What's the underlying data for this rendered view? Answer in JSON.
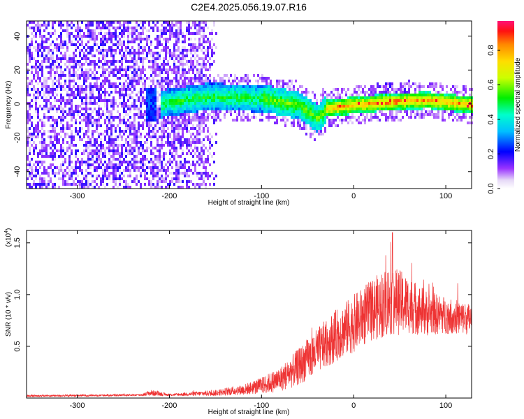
{
  "title": "C2E4.2025.056.19.07.R16",
  "chart_data": [
    {
      "type": "heatmap",
      "xlabel": "Height of straight line (km)",
      "ylabel": "Frequency (Hz)",
      "xlim": [
        -355,
        128
      ],
      "ylim": [
        -50,
        49
      ],
      "x_ticks": [
        -300,
        -200,
        -100,
        0,
        100
      ],
      "y_ticks": [
        -40,
        -20,
        0,
        20,
        40
      ],
      "colorbar": {
        "label": "Normalized spectral amplitude",
        "range": [
          0,
          0.97
        ],
        "ticks": [
          0.0,
          0.2,
          0.4,
          0.6,
          0.8
        ]
      },
      "description_points": {
        "noise_region_x": [
          -355,
          -150
        ],
        "signal_band_center_hz": [
          {
            "x": -220,
            "f": 0
          },
          {
            "x": -160,
            "f": 5
          },
          {
            "x": -100,
            "f": 4
          },
          {
            "x": -60,
            "f": 0
          },
          {
            "x": -40,
            "f": -8
          },
          {
            "x": -30,
            "f": -2
          },
          {
            "x": 0,
            "f": 0
          },
          {
            "x": 40,
            "f": 2
          },
          {
            "x": 80,
            "f": 3
          },
          {
            "x": 128,
            "f": 0
          }
        ],
        "peak_amplitude_region_x": [
          -30,
          128
        ]
      }
    },
    {
      "type": "line",
      "xlabel": "Height of straight line (km)",
      "ylabel": "SNR (10 * v/v)",
      "scale_label": "(x10",
      "scale_exponent": "4",
      "scale_close": ")",
      "xlim": [
        -355,
        128
      ],
      "ylim": [
        0,
        1.62
      ],
      "x_ticks": [
        -300,
        -200,
        -100,
        0,
        100
      ],
      "y_ticks": [
        0.5,
        1.0,
        1.5
      ],
      "y_tick_labels": [
        "0.5",
        "1.0",
        "1.5"
      ],
      "color": "#ee3333",
      "envelope": [
        {
          "x": -355,
          "mean": 0.02,
          "spread": 0.01
        },
        {
          "x": -230,
          "mean": 0.03,
          "spread": 0.01
        },
        {
          "x": -220,
          "mean": 0.05,
          "spread": 0.03
        },
        {
          "x": -200,
          "mean": 0.03,
          "spread": 0.01
        },
        {
          "x": -150,
          "mean": 0.05,
          "spread": 0.03
        },
        {
          "x": -120,
          "mean": 0.08,
          "spread": 0.05
        },
        {
          "x": -100,
          "mean": 0.12,
          "spread": 0.08
        },
        {
          "x": -80,
          "mean": 0.18,
          "spread": 0.12
        },
        {
          "x": -60,
          "mean": 0.3,
          "spread": 0.18
        },
        {
          "x": -40,
          "mean": 0.45,
          "spread": 0.22
        },
        {
          "x": -20,
          "mean": 0.6,
          "spread": 0.25
        },
        {
          "x": 0,
          "mean": 0.72,
          "spread": 0.28
        },
        {
          "x": 20,
          "mean": 0.85,
          "spread": 0.3
        },
        {
          "x": 40,
          "mean": 0.95,
          "spread": 0.35
        },
        {
          "x": 60,
          "mean": 0.9,
          "spread": 0.28
        },
        {
          "x": 80,
          "mean": 0.82,
          "spread": 0.22
        },
        {
          "x": 100,
          "mean": 0.8,
          "spread": 0.18
        },
        {
          "x": 128,
          "mean": 0.76,
          "spread": 0.15
        }
      ],
      "peak": {
        "x": 42,
        "y": 1.6
      }
    }
  ]
}
